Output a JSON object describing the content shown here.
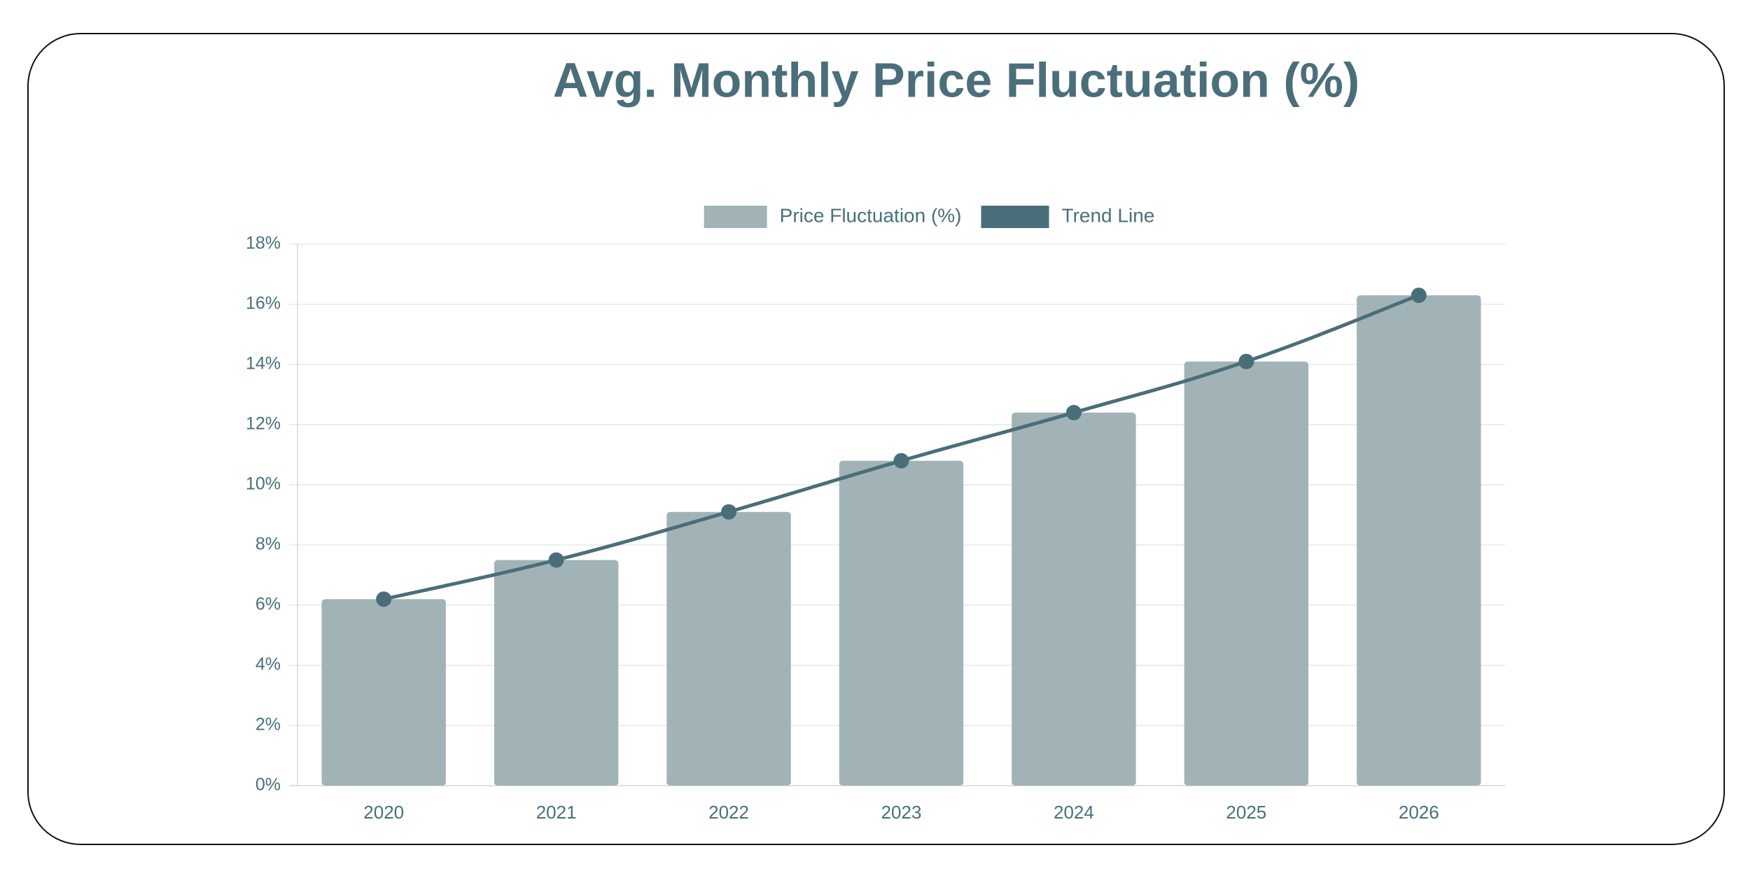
{
  "chart_data": {
    "type": "bar",
    "title": "Avg. Monthly Price Fluctuation (%)",
    "categories": [
      "2020",
      "2021",
      "2022",
      "2023",
      "2024",
      "2025",
      "2026"
    ],
    "series": [
      {
        "name": "Price Fluctuation (%)",
        "type": "bar",
        "color": "#a2b3b7",
        "values": [
          6.2,
          7.5,
          9.1,
          10.8,
          12.4,
          14.1,
          16.3
        ]
      },
      {
        "name": "Trend Line",
        "type": "line",
        "color": "#4a6e79",
        "values": [
          6.2,
          7.5,
          9.1,
          10.8,
          12.4,
          14.1,
          16.3
        ]
      }
    ],
    "ylim": [
      0,
      18
    ],
    "yticks": [
      {
        "value": 0,
        "label": "0%"
      },
      {
        "value": 2,
        "label": "2%"
      },
      {
        "value": 4,
        "label": "4%"
      },
      {
        "value": 6,
        "label": "6%"
      },
      {
        "value": 8,
        "label": "8%"
      },
      {
        "value": 10,
        "label": "10%"
      },
      {
        "value": 12,
        "label": "12%"
      },
      {
        "value": 14,
        "label": "14%"
      },
      {
        "value": 16,
        "label": "16%"
      },
      {
        "value": 18,
        "label": "18%"
      }
    ],
    "grid": true,
    "legend": "top"
  }
}
